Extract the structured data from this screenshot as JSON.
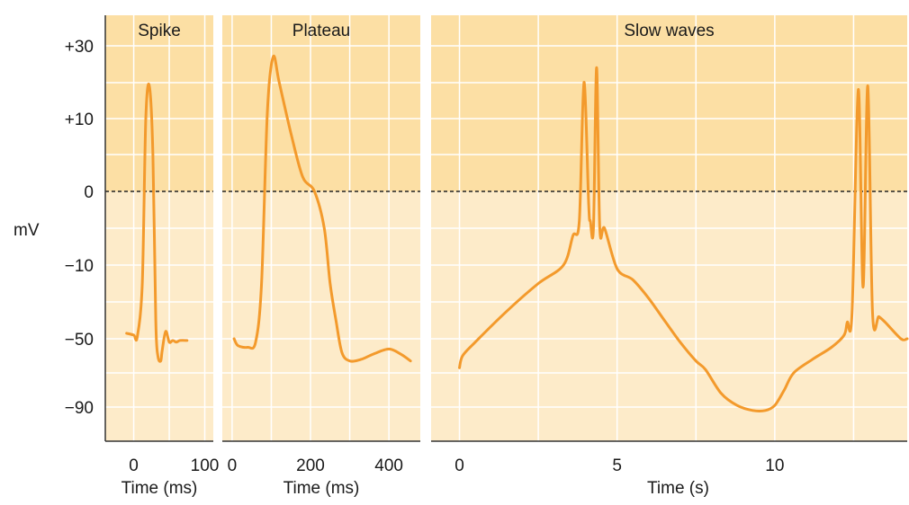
{
  "y_axis_label": "mV",
  "colors": {
    "bg_upper": "#fcdfa4",
    "bg_lower": "#fdebc9",
    "trace": "#f39a2c",
    "grid": "#ffffff",
    "zero_line": "#222222"
  },
  "chart_data": [
    {
      "type": "line",
      "title": "Spike",
      "xlabel": "Time (ms)",
      "ylabel": "mV",
      "xlim": [
        -40,
        112
      ],
      "y_ticks": [
        "+30",
        "+10",
        "0",
        "-10",
        "-50",
        "-90"
      ],
      "x_ticks": [
        0,
        100
      ],
      "series": [
        {
          "x": [
            -10,
            0,
            5,
            12,
            17,
            22,
            27,
            31,
            34,
            38,
            40,
            45,
            50,
            55,
            60,
            65,
            75
          ],
          "y": [
            -47,
            -48,
            -49,
            -20,
            10,
            19,
            5,
            -40,
            -60,
            -63,
            -57,
            -46,
            -52,
            -51,
            -52,
            -51,
            -51
          ]
        }
      ]
    },
    {
      "type": "line",
      "title": "Plateau",
      "xlabel": "Time (ms)",
      "ylabel": "mV",
      "xlim": [
        -25,
        480
      ],
      "y_ticks": [
        "+30",
        "+10",
        "0",
        "-10",
        "-50",
        "-90"
      ],
      "x_ticks": [
        0,
        200,
        400
      ],
      "series": [
        {
          "x": [
            5,
            15,
            40,
            60,
            75,
            90,
            105,
            120,
            150,
            180,
            210,
            235,
            250,
            265,
            280,
            300,
            330,
            360,
            400,
            430,
            455
          ],
          "y": [
            -50,
            -54,
            -55,
            -52,
            -20,
            12,
            27,
            20,
            8,
            2,
            0,
            -5,
            -20,
            -40,
            -58,
            -63,
            -62,
            -59,
            -56,
            -59,
            -63
          ]
        }
      ]
    },
    {
      "type": "line",
      "title": "Slow waves",
      "xlabel": "Time (s)",
      "ylabel": "mV",
      "xlim": [
        -0.9,
        14.2
      ],
      "y_ticks": [
        "+30",
        "+10",
        "0",
        "-10",
        "-50",
        "-90"
      ],
      "x_ticks": [
        0,
        5,
        10
      ],
      "series": [
        {
          "x": [
            0,
            0.1,
            0.5,
            1.5,
            2.5,
            3.3,
            3.6,
            3.8,
            3.95,
            4.1,
            4.15,
            4.25,
            4.35,
            4.45,
            4.6,
            5.0,
            5.5,
            6.0,
            6.5,
            7.0,
            7.5,
            7.8,
            8.3,
            8.8,
            9.3,
            9.7,
            10.0,
            10.3,
            10.6,
            11.2,
            11.8,
            12.2,
            12.3,
            12.45,
            12.65,
            12.8,
            12.95,
            13.1,
            13.3,
            13.5,
            14.0,
            14.2
          ],
          "y": [
            -67,
            -60,
            -52,
            -35,
            -20,
            -10,
            -6,
            -4,
            20,
            -2,
            -4,
            -5,
            24,
            -5,
            -5,
            -12,
            -18,
            -28,
            -40,
            -52,
            -63,
            -68,
            -82,
            -89,
            -92,
            -92,
            -89,
            -80,
            -70,
            -62,
            -55,
            -48,
            -41,
            -36,
            18,
            -22,
            19,
            -36,
            -38,
            -41,
            -50,
            -50
          ]
        }
      ]
    }
  ]
}
